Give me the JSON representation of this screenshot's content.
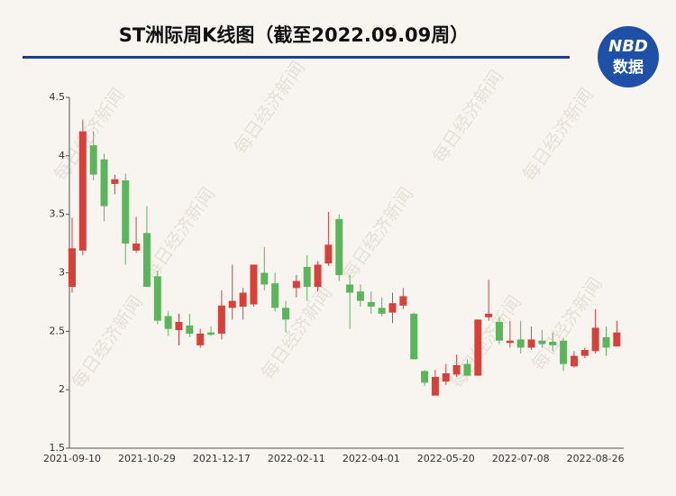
{
  "chart_data": {
    "type": "candlestick",
    "title": "ST洲际周K线图（截至2022.09.09周）",
    "categories": [
      "2021-09-10",
      null,
      null,
      null,
      null,
      null,
      null,
      "2021-10-29",
      null,
      null,
      null,
      null,
      null,
      null,
      "2021-12-17",
      null,
      null,
      null,
      null,
      null,
      null,
      "2022-02-11",
      null,
      null,
      null,
      null,
      null,
      null,
      "2022-04-01",
      null,
      null,
      null,
      null,
      null,
      null,
      "2022-05-20",
      null,
      null,
      null,
      null,
      null,
      null,
      "2022-07-08",
      null,
      null,
      null,
      null,
      null,
      null,
      "2022-08-26",
      null,
      null
    ],
    "open": [
      2.88,
      3.19,
      4.09,
      3.97,
      3.76,
      3.79,
      3.19,
      3.34,
      2.97,
      2.63,
      2.51,
      2.55,
      2.38,
      2.49,
      2.48,
      2.7,
      2.71,
      2.73,
      3.0,
      2.91,
      2.7,
      2.87,
      3.05,
      2.88,
      3.08,
      3.46,
      2.9,
      2.84,
      2.75,
      2.7,
      2.66,
      2.72,
      2.65,
      2.16,
      1.95,
      2.07,
      2.13,
      2.22,
      2.12,
      2.62,
      2.58,
      2.4,
      2.43,
      2.36,
      2.42,
      2.41,
      2.42,
      2.2,
      2.29,
      2.33,
      2.45,
      2.37
    ],
    "high": [
      3.47,
      4.31,
      4.21,
      4.02,
      3.84,
      3.85,
      3.48,
      3.57,
      3.02,
      2.67,
      2.65,
      2.65,
      2.52,
      2.54,
      2.85,
      3.07,
      2.87,
      3.07,
      3.22,
      3.0,
      2.76,
      2.98,
      3.15,
      3.1,
      3.52,
      3.5,
      2.98,
      2.9,
      2.84,
      2.79,
      2.83,
      2.87,
      2.66,
      2.17,
      2.17,
      2.22,
      2.3,
      2.26,
      2.6,
      2.94,
      2.62,
      2.59,
      2.59,
      2.54,
      2.51,
      2.49,
      2.44,
      2.33,
      2.36,
      2.69,
      2.54,
      2.59
    ],
    "low": [
      2.83,
      3.15,
      3.79,
      3.44,
      3.67,
      3.07,
      3.17,
      2.88,
      2.56,
      2.46,
      2.38,
      2.45,
      2.36,
      2.46,
      2.43,
      2.6,
      2.6,
      2.71,
      2.85,
      2.67,
      2.49,
      2.79,
      2.76,
      2.84,
      3.06,
      2.93,
      2.52,
      2.71,
      2.65,
      2.63,
      2.57,
      2.69,
      2.26,
      2.03,
      1.95,
      2.04,
      2.11,
      2.12,
      2.12,
      2.59,
      2.39,
      2.36,
      2.31,
      2.34,
      2.36,
      2.33,
      2.16,
      2.19,
      2.27,
      2.31,
      2.29,
      2.37
    ],
    "close": [
      3.21,
      4.21,
      3.84,
      3.57,
      3.8,
      3.25,
      3.25,
      2.88,
      2.59,
      2.52,
      2.58,
      2.48,
      2.48,
      2.47,
      2.72,
      2.76,
      2.83,
      3.07,
      2.9,
      2.7,
      2.6,
      2.93,
      2.88,
      3.07,
      3.24,
      2.98,
      2.83,
      2.76,
      2.71,
      2.65,
      2.74,
      2.8,
      2.26,
      2.06,
      2.11,
      2.14,
      2.21,
      2.12,
      2.6,
      2.65,
      2.42,
      2.42,
      2.36,
      2.43,
      2.39,
      2.38,
      2.22,
      2.29,
      2.34,
      2.53,
      2.36,
      2.49
    ],
    "up_color": "#d8403a",
    "down_color": "#5bb55a",
    "ylim": [
      1.5,
      4.5
    ],
    "yticks": [
      1.5,
      2,
      2.5,
      3,
      3.5,
      4,
      4.5
    ],
    "grid": false,
    "watermark": "每日经济新闻"
  },
  "logo": {
    "top": "NBD",
    "bottom": "数据"
  }
}
